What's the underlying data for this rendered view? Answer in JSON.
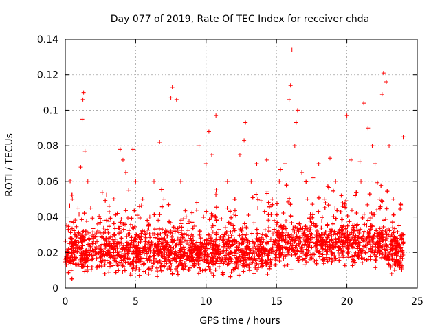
{
  "chart_data": {
    "type": "scatter",
    "title": "Day 077 of 2019, Rate Of TEC Index for receiver chda",
    "xlabel": "GPS time / hours",
    "ylabel": "ROTI / TECUs",
    "xlim": [
      0,
      25
    ],
    "ylim": [
      0,
      0.14
    ],
    "xticks": [
      0,
      5,
      10,
      15,
      20,
      25
    ],
    "xtick_labels": [
      "0",
      "5",
      "10",
      "15",
      "20",
      "25"
    ],
    "yticks": [
      0,
      0.02,
      0.04,
      0.06,
      0.08,
      0.1,
      0.12,
      0.14
    ],
    "ytick_labels": [
      "0",
      "0.02",
      "0.04",
      "0.06",
      "0.08",
      "0.1",
      "0.12",
      "0.14"
    ],
    "grid": true,
    "marker": "+",
    "color": "#ff0000",
    "series": [
      {
        "name": "ROTI",
        "x": [
          0.1,
          0.3,
          0.5,
          0.7,
          0.9,
          1.1,
          1.2,
          1.25,
          1.3,
          1.4,
          1.6,
          1.8,
          2.0,
          2.5,
          3.0,
          3.5,
          3.9,
          4.1,
          4.3,
          4.5,
          4.8,
          5.0,
          5.5,
          6.0,
          6.3,
          6.7,
          7.0,
          7.5,
          7.6,
          7.9,
          8.2,
          8.6,
          9.0,
          9.5,
          10.0,
          10.2,
          10.4,
          10.7,
          10.8,
          11.2,
          11.5,
          12.0,
          12.4,
          12.7,
          12.8,
          13.2,
          13.6,
          14.0,
          14.3,
          14.7,
          15.2,
          15.6,
          15.9,
          16.0,
          16.1,
          16.3,
          16.4,
          16.5,
          16.8,
          17.2,
          17.6,
          18.0,
          18.4,
          18.8,
          19.2,
          19.6,
          20.0,
          20.3,
          20.6,
          21.0,
          21.2,
          21.5,
          21.8,
          22.0,
          22.3,
          22.5,
          22.6,
          22.8,
          23.0,
          23.3,
          23.7,
          24.0
        ],
        "y": [
          0.02,
          0.025,
          0.05,
          0.03,
          0.045,
          0.068,
          0.095,
          0.106,
          0.11,
          0.077,
          0.06,
          0.045,
          0.025,
          0.02,
          0.02,
          0.03,
          0.078,
          0.072,
          0.065,
          0.055,
          0.078,
          0.06,
          0.05,
          0.04,
          0.06,
          0.082,
          0.05,
          0.107,
          0.113,
          0.106,
          0.06,
          0.03,
          0.025,
          0.08,
          0.07,
          0.088,
          0.075,
          0.097,
          0.02,
          0.03,
          0.045,
          0.05,
          0.075,
          0.083,
          0.093,
          0.06,
          0.07,
          0.03,
          0.072,
          0.05,
          0.06,
          0.07,
          0.106,
          0.114,
          0.134,
          0.08,
          0.093,
          0.1,
          0.065,
          0.05,
          0.062,
          0.07,
          0.05,
          0.073,
          0.06,
          0.052,
          0.097,
          0.072,
          0.052,
          0.06,
          0.104,
          0.09,
          0.08,
          0.07,
          0.05,
          0.109,
          0.121,
          0.116,
          0.08,
          0.05,
          0.035,
          0.085
        ]
      }
    ]
  }
}
